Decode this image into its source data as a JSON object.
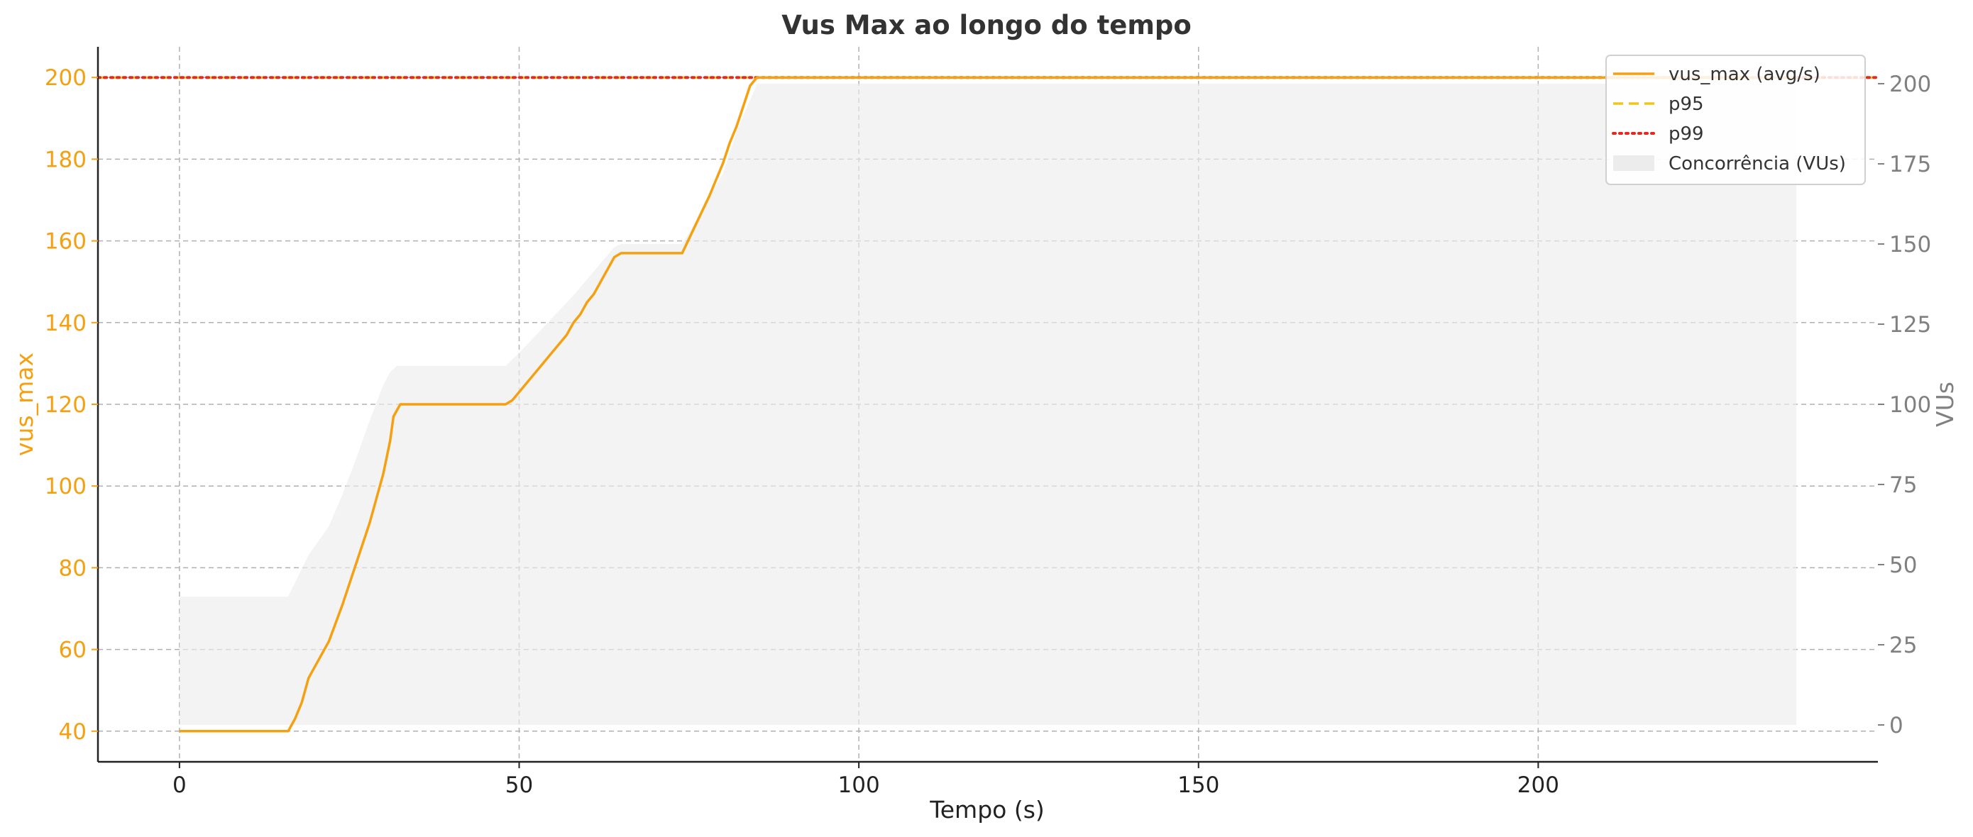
{
  "chart_data": {
    "type": "line",
    "title": "Vus Max ao longo do tempo",
    "xlabel": "Tempo (s)",
    "ylabel": "vus_max",
    "y2label": "VUs",
    "xlim": [
      -12,
      250
    ],
    "ylim": [
      32.5,
      207.5
    ],
    "y2lim": [
      -11.5,
      211.5
    ],
    "xticks": [
      0,
      50,
      100,
      150,
      200
    ],
    "yticks": [
      40,
      60,
      80,
      100,
      120,
      140,
      160,
      180,
      200
    ],
    "y2ticks": [
      0,
      25,
      50,
      75,
      100,
      125,
      150,
      175,
      200
    ],
    "grid": true,
    "legend_position": "top-right",
    "colors": {
      "line": "#f5a010",
      "left_axis": "#f5a010",
      "right_axis": "#808080",
      "p95": "#f2c618",
      "p99": "#e8281e",
      "area": "#ececec",
      "grid": "#b0b0b0"
    },
    "series": [
      {
        "name": "vus_max (avg/s)",
        "style": "line",
        "axis": "left",
        "points": [
          [
            0,
            40
          ],
          [
            16,
            40
          ],
          [
            17,
            43
          ],
          [
            18,
            47
          ],
          [
            19,
            53
          ],
          [
            22,
            62
          ],
          [
            24,
            71
          ],
          [
            26,
            81
          ],
          [
            28,
            91
          ],
          [
            30,
            103
          ],
          [
            31,
            111
          ],
          [
            31.5,
            117
          ],
          [
            32.5,
            120
          ],
          [
            48,
            120
          ],
          [
            49,
            121
          ],
          [
            57,
            137
          ],
          [
            58,
            140
          ],
          [
            59,
            142
          ],
          [
            60,
            145
          ],
          [
            61,
            147
          ],
          [
            62,
            150
          ],
          [
            63,
            153
          ],
          [
            64,
            156
          ],
          [
            65,
            157
          ],
          [
            74,
            157
          ],
          [
            76,
            164
          ],
          [
            78,
            171
          ],
          [
            80,
            179
          ],
          [
            81,
            184
          ],
          [
            82,
            188
          ],
          [
            83,
            193
          ],
          [
            84,
            198
          ],
          [
            85,
            200
          ],
          [
            238,
            200
          ]
        ]
      },
      {
        "name": "p95",
        "style": "dashed",
        "axis": "left",
        "value": 200
      },
      {
        "name": "p99",
        "style": "dotted",
        "axis": "left",
        "value": 200
      },
      {
        "name": "Concorrência (VUs)",
        "style": "area",
        "axis": "right",
        "points": [
          [
            0,
            40
          ],
          [
            16,
            40
          ],
          [
            19,
            53
          ],
          [
            22,
            62
          ],
          [
            24,
            72
          ],
          [
            26,
            83
          ],
          [
            28,
            95
          ],
          [
            30,
            106
          ],
          [
            31,
            110
          ],
          [
            32,
            112
          ],
          [
            48,
            112
          ],
          [
            50,
            116
          ],
          [
            54,
            125
          ],
          [
            58,
            134
          ],
          [
            60,
            139
          ],
          [
            62,
            144
          ],
          [
            64,
            149
          ],
          [
            65,
            150
          ],
          [
            74,
            150
          ],
          [
            76,
            157
          ],
          [
            80,
            172
          ],
          [
            82,
            185
          ],
          [
            84,
            195
          ],
          [
            85,
            200
          ],
          [
            238,
            200
          ]
        ]
      }
    ]
  }
}
